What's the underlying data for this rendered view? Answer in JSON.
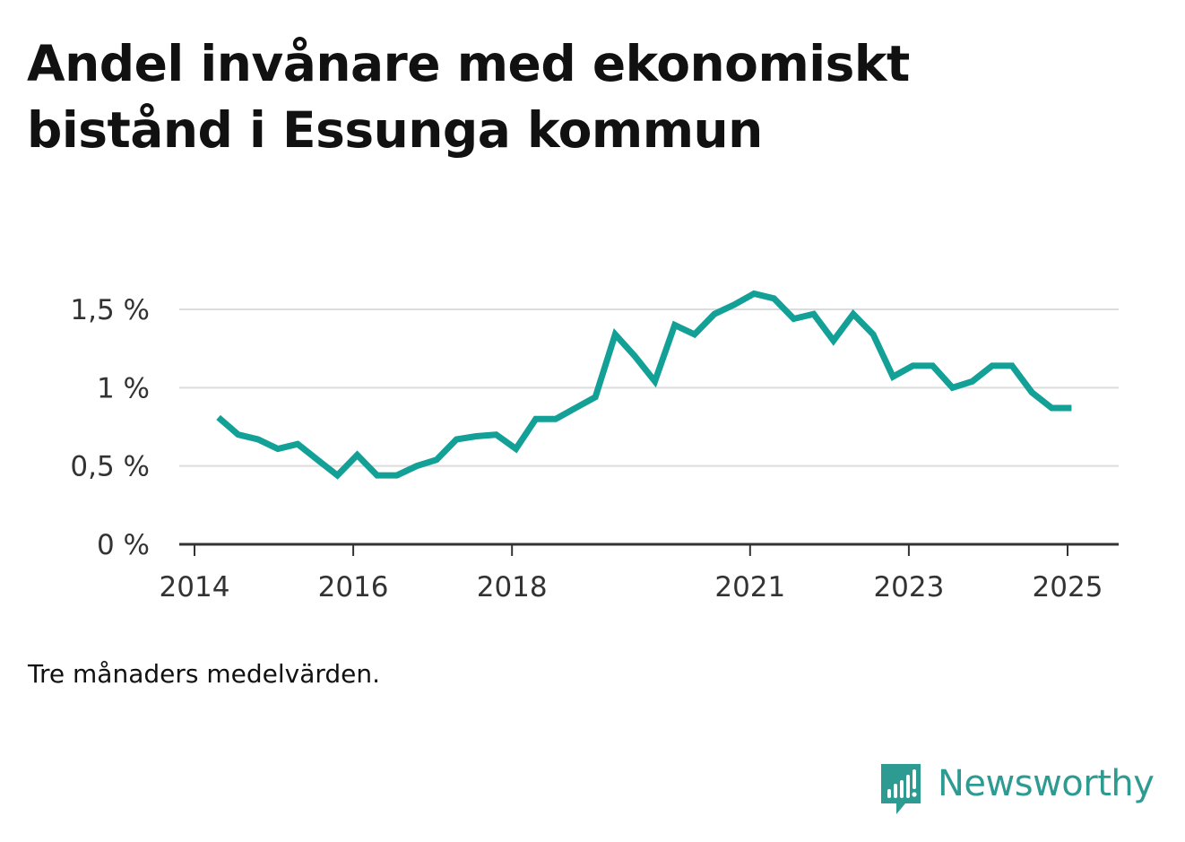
{
  "title": {
    "line1": "Andel invånare med ekonomiskt",
    "line2": "bistånd i Essunga kommun"
  },
  "note": "Tre månaders medelvärden.",
  "brand": {
    "name": "Newsworthy",
    "color": "#2e9b93"
  },
  "chart_data": {
    "type": "line",
    "title": "Andel invånare med ekonomiskt bistånd i Essunga kommun",
    "xlabel": "",
    "ylabel": "",
    "xlim": [
      2014.0,
      2025.5
    ],
    "ylim": [
      0,
      1.75
    ],
    "grid": true,
    "line_color": "#13a096",
    "y_ticks": [
      {
        "value": 0,
        "label": "0 %"
      },
      {
        "value": 0.5,
        "label": "0,5 %"
      },
      {
        "value": 1,
        "label": "1 %"
      },
      {
        "value": 1.5,
        "label": "1,5 %"
      }
    ],
    "x_ticks": [
      {
        "value": 2014,
        "label": "2014"
      },
      {
        "value": 2016,
        "label": "2016"
      },
      {
        "value": 2018,
        "label": "2018"
      },
      {
        "value": 2021,
        "label": "2021"
      },
      {
        "value": 2023,
        "label": "2023"
      },
      {
        "value": 2025,
        "label": "2025"
      }
    ],
    "series": [
      {
        "x": [
          2014.3,
          2014.55,
          2014.8,
          2015.05,
          2015.3,
          2015.55,
          2015.8,
          2016.05,
          2016.3,
          2016.55,
          2016.8,
          2017.05,
          2017.3,
          2017.55,
          2017.8,
          2018.05,
          2018.3,
          2018.55,
          2018.8,
          2019.05,
          2019.3,
          2019.55,
          2019.8,
          2020.05,
          2020.3,
          2020.55,
          2020.8,
          2021.05,
          2021.3,
          2021.55,
          2021.8,
          2022.05,
          2022.3,
          2022.55,
          2022.8,
          2023.05,
          2023.3,
          2023.55,
          2023.8,
          2024.05,
          2024.3,
          2024.55,
          2024.8,
          2025.05
        ],
        "values": [
          0.81,
          0.7,
          0.67,
          0.61,
          0.64,
          0.54,
          0.44,
          0.57,
          0.44,
          0.44,
          0.5,
          0.54,
          0.67,
          0.69,
          0.7,
          0.61,
          0.8,
          0.8,
          0.87,
          0.94,
          1.34,
          1.2,
          1.04,
          1.4,
          1.34,
          1.47,
          1.53,
          1.6,
          1.57,
          1.44,
          1.47,
          1.3,
          1.47,
          1.34,
          1.07,
          1.14,
          1.14,
          1.0,
          1.04,
          1.14,
          1.14,
          0.97,
          0.87,
          0.87
        ]
      }
    ]
  }
}
